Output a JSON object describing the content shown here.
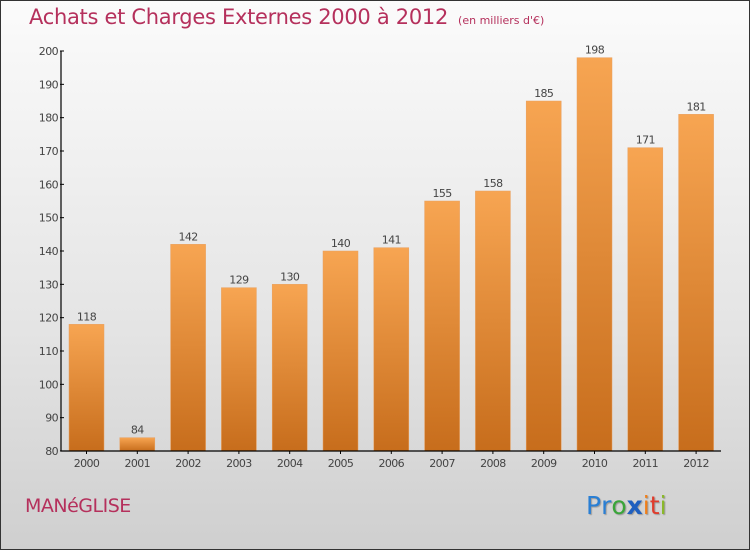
{
  "title": "Achats et Charges Externes 2000 à 2012",
  "subtitle": "(en milliers d'€)",
  "city": "MANéGLISE",
  "logo": {
    "letters": [
      {
        "ch": "P",
        "color": "#2a7fd4"
      },
      {
        "ch": "r",
        "color": "#2a7fd4"
      },
      {
        "ch": "o",
        "color": "#3aa53a"
      },
      {
        "ch": "x",
        "color": "#1f5fbf"
      },
      {
        "ch": "i",
        "color": "#f07f1a"
      },
      {
        "ch": "t",
        "color": "#e03b2b"
      },
      {
        "ch": "i",
        "color": "#8ab82a"
      }
    ]
  },
  "colors": {
    "bar_top": "#f7a552",
    "bar_bottom": "#c76d1c",
    "title": "#b5305c"
  },
  "chart_data": {
    "type": "bar",
    "title": "Achats et Charges Externes 2000 à 2012 (en milliers d'€)",
    "xlabel": "",
    "ylabel": "",
    "categories": [
      "2000",
      "2001",
      "2002",
      "2003",
      "2004",
      "2005",
      "2006",
      "2007",
      "2008",
      "2009",
      "2010",
      "2011",
      "2012"
    ],
    "values": [
      118,
      84,
      142,
      129,
      130,
      140,
      141,
      155,
      158,
      185,
      198,
      171,
      181
    ],
    "ylim": [
      80,
      200
    ],
    "yticks": [
      80,
      90,
      100,
      110,
      120,
      130,
      140,
      150,
      160,
      170,
      180,
      190,
      200
    ],
    "grid": false,
    "legend": "none"
  }
}
